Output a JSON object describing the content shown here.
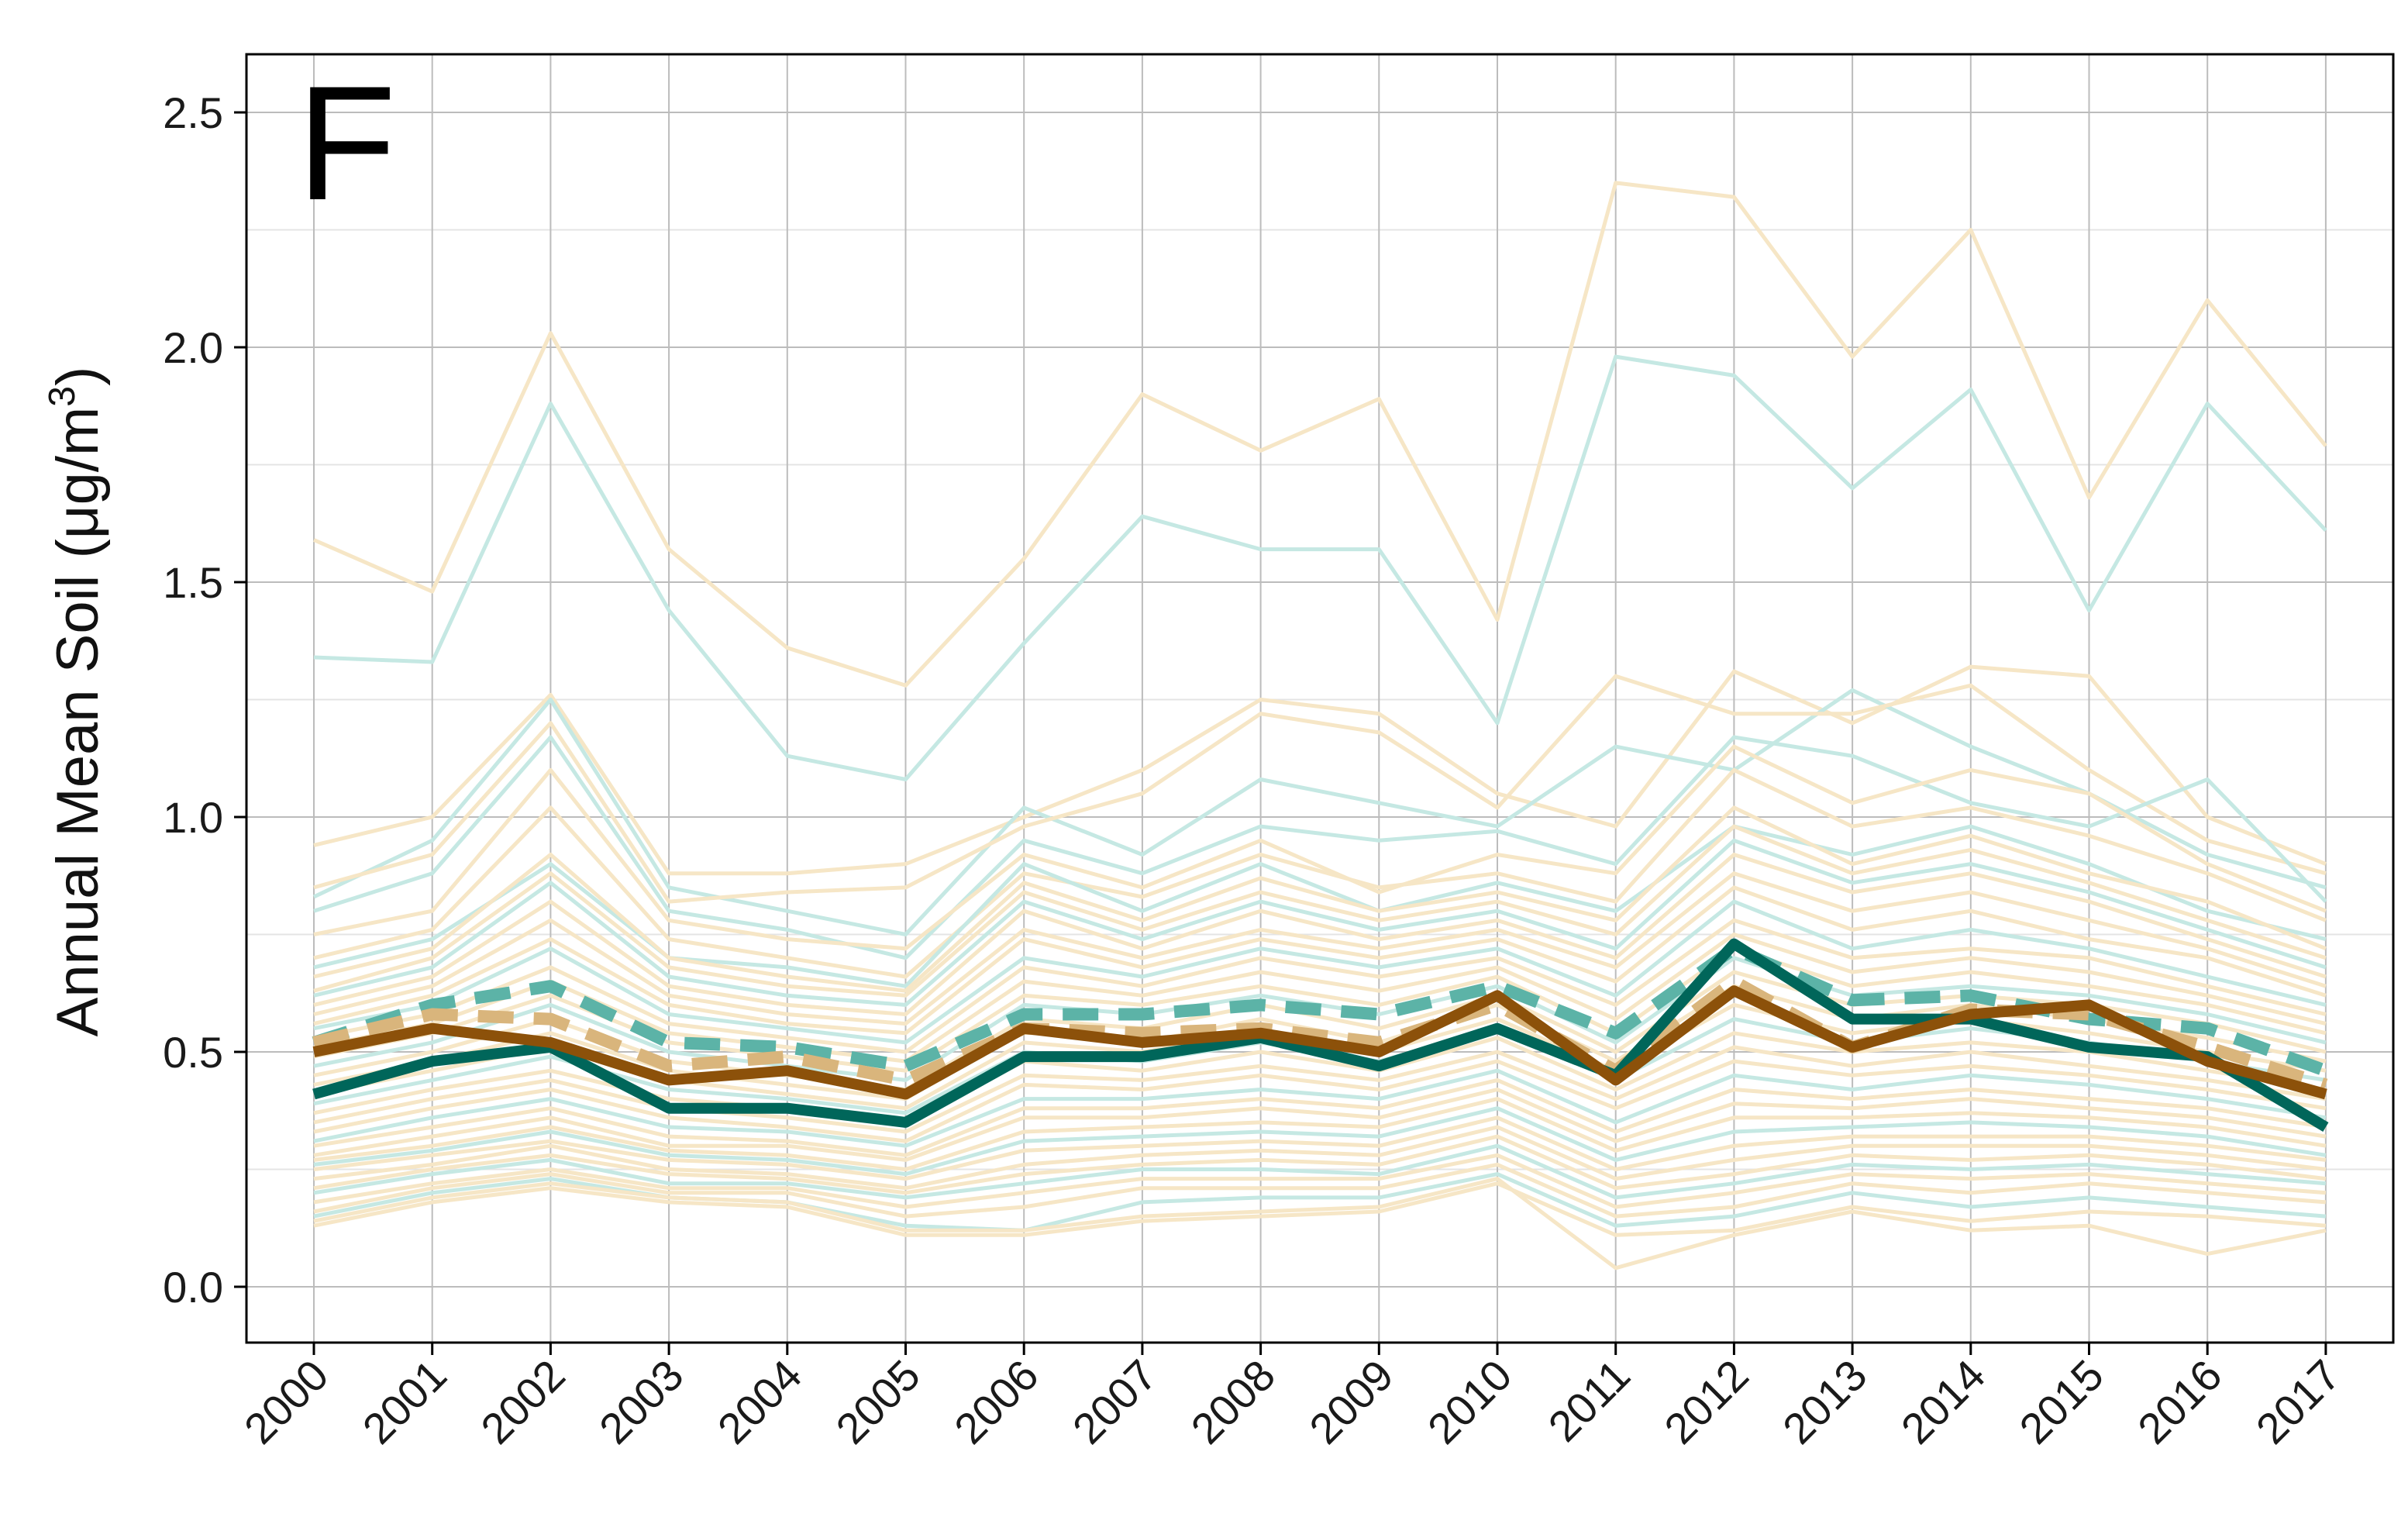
{
  "chart_data": {
    "type": "line",
    "panel_label": "F",
    "ylabel_main": "Annual Mean Soil (",
    "ylabel_mu": "μ",
    "ylabel_unit": "g/m",
    "ylabel_sup": "3",
    "ylabel_close": ")",
    "ylim": [
      -0.12,
      2.63
    ],
    "yticks": [
      "0.0",
      "0.5",
      "1.0",
      "1.5",
      "2.0",
      "2.5"
    ],
    "grid": true,
    "legend": "none",
    "x": [
      "2000",
      "2001",
      "2002",
      "2003",
      "2004",
      "2005",
      "2006",
      "2007",
      "2008",
      "2009",
      "2010",
      "2011",
      "2012",
      "2013",
      "2014",
      "2015",
      "2016",
      "2017"
    ],
    "colors": {
      "background_teal": "#c5e8e3",
      "background_tan": "#f6e6c6",
      "mean_teal_dashed": "#5cb3a7",
      "mean_tan_dashed": "#d9b57c",
      "highlight_teal": "#00665a",
      "highlight_brown": "#8c510a"
    },
    "background_series": [
      {
        "group": "tan",
        "values": [
          1.59,
          1.48,
          2.03,
          1.57,
          1.36,
          1.28,
          1.55,
          1.9,
          1.78,
          1.89,
          1.42,
          2.35,
          2.32,
          1.98,
          2.25,
          1.68,
          2.1,
          1.79
        ]
      },
      {
        "group": "teal",
        "values": [
          1.34,
          1.33,
          1.88,
          1.44,
          1.13,
          1.08,
          1.37,
          1.64,
          1.57,
          1.57,
          1.2,
          1.98,
          1.94,
          1.7,
          1.91,
          1.44,
          1.88,
          1.61
        ]
      },
      {
        "group": "tan",
        "values": [
          0.94,
          1.0,
          1.26,
          0.88,
          0.88,
          0.9,
          1.0,
          1.1,
          1.25,
          1.22,
          1.05,
          0.98,
          1.31,
          1.2,
          1.32,
          1.3,
          1.0,
          0.9
        ]
      },
      {
        "group": "teal",
        "values": [
          0.83,
          0.95,
          1.25,
          0.85,
          0.8,
          0.75,
          1.02,
          0.92,
          1.08,
          1.03,
          0.98,
          1.15,
          1.1,
          1.27,
          1.15,
          1.05,
          0.92,
          0.85
        ]
      },
      {
        "group": "tan",
        "values": [
          0.85,
          0.92,
          1.2,
          0.82,
          0.84,
          0.85,
          0.98,
          1.05,
          1.22,
          1.18,
          1.02,
          1.3,
          1.22,
          1.22,
          1.28,
          1.1,
          0.95,
          0.88
        ]
      },
      {
        "group": "teal",
        "values": [
          0.8,
          0.88,
          1.17,
          0.8,
          0.76,
          0.7,
          0.95,
          0.88,
          0.98,
          0.95,
          0.97,
          0.9,
          1.17,
          1.13,
          1.03,
          0.98,
          1.08,
          0.82
        ]
      },
      {
        "group": "tan",
        "values": [
          0.75,
          0.8,
          1.1,
          0.78,
          0.74,
          0.72,
          0.92,
          0.85,
          0.95,
          0.84,
          0.92,
          0.88,
          1.15,
          1.03,
          1.1,
          1.05,
          0.9,
          0.8
        ]
      },
      {
        "group": "tan",
        "values": [
          0.7,
          0.76,
          1.02,
          0.74,
          0.7,
          0.66,
          0.88,
          0.83,
          0.92,
          0.85,
          0.88,
          0.82,
          1.1,
          0.98,
          1.02,
          0.96,
          0.88,
          0.78
        ]
      },
      {
        "group": "teal",
        "values": [
          0.68,
          0.74,
          0.9,
          0.7,
          0.68,
          0.64,
          0.9,
          0.8,
          0.9,
          0.8,
          0.86,
          0.8,
          0.98,
          0.92,
          0.98,
          0.9,
          0.8,
          0.74
        ]
      },
      {
        "group": "tan",
        "values": [
          0.66,
          0.72,
          0.92,
          0.7,
          0.66,
          0.63,
          0.86,
          0.78,
          0.87,
          0.8,
          0.84,
          0.78,
          1.02,
          0.9,
          0.96,
          0.88,
          0.82,
          0.72
        ]
      },
      {
        "group": "tan",
        "values": [
          0.63,
          0.7,
          0.88,
          0.68,
          0.64,
          0.62,
          0.84,
          0.76,
          0.84,
          0.78,
          0.82,
          0.75,
          0.98,
          0.88,
          0.93,
          0.86,
          0.78,
          0.7
        ]
      },
      {
        "group": "teal",
        "values": [
          0.62,
          0.68,
          0.86,
          0.66,
          0.62,
          0.6,
          0.82,
          0.74,
          0.82,
          0.76,
          0.8,
          0.72,
          0.95,
          0.86,
          0.9,
          0.84,
          0.76,
          0.68
        ]
      },
      {
        "group": "tan",
        "values": [
          0.6,
          0.66,
          0.82,
          0.64,
          0.6,
          0.58,
          0.8,
          0.72,
          0.8,
          0.74,
          0.78,
          0.7,
          0.92,
          0.84,
          0.88,
          0.82,
          0.74,
          0.66
        ]
      },
      {
        "group": "tan",
        "values": [
          0.58,
          0.64,
          0.78,
          0.62,
          0.58,
          0.56,
          0.76,
          0.7,
          0.76,
          0.72,
          0.76,
          0.68,
          0.88,
          0.8,
          0.84,
          0.78,
          0.72,
          0.64
        ]
      },
      {
        "group": "tan",
        "values": [
          0.56,
          0.62,
          0.74,
          0.6,
          0.56,
          0.54,
          0.74,
          0.68,
          0.74,
          0.7,
          0.74,
          0.65,
          0.85,
          0.76,
          0.8,
          0.74,
          0.7,
          0.62
        ]
      },
      {
        "group": "teal",
        "values": [
          0.55,
          0.6,
          0.72,
          0.58,
          0.55,
          0.52,
          0.7,
          0.66,
          0.72,
          0.68,
          0.72,
          0.62,
          0.82,
          0.72,
          0.76,
          0.72,
          0.66,
          0.6
        ]
      },
      {
        "group": "tan",
        "values": [
          0.53,
          0.58,
          0.68,
          0.56,
          0.53,
          0.5,
          0.68,
          0.64,
          0.7,
          0.66,
          0.7,
          0.6,
          0.78,
          0.7,
          0.72,
          0.7,
          0.64,
          0.58
        ]
      },
      {
        "group": "tan",
        "values": [
          0.51,
          0.56,
          0.65,
          0.54,
          0.51,
          0.48,
          0.65,
          0.62,
          0.67,
          0.63,
          0.68,
          0.57,
          0.75,
          0.67,
          0.7,
          0.67,
          0.62,
          0.56
        ]
      },
      {
        "group": "tan",
        "values": [
          0.49,
          0.54,
          0.62,
          0.52,
          0.49,
          0.46,
          0.62,
          0.6,
          0.64,
          0.6,
          0.66,
          0.54,
          0.72,
          0.64,
          0.67,
          0.64,
          0.6,
          0.54
        ]
      },
      {
        "group": "teal",
        "values": [
          0.47,
          0.52,
          0.6,
          0.5,
          0.47,
          0.44,
          0.6,
          0.58,
          0.62,
          0.58,
          0.64,
          0.52,
          0.7,
          0.62,
          0.64,
          0.62,
          0.58,
          0.52
        ]
      },
      {
        "group": "tan",
        "values": [
          0.45,
          0.5,
          0.57,
          0.48,
          0.45,
          0.42,
          0.57,
          0.55,
          0.6,
          0.55,
          0.62,
          0.5,
          0.67,
          0.6,
          0.62,
          0.6,
          0.56,
          0.5
        ]
      },
      {
        "group": "tan",
        "values": [
          0.43,
          0.48,
          0.54,
          0.46,
          0.43,
          0.4,
          0.55,
          0.52,
          0.57,
          0.52,
          0.6,
          0.48,
          0.64,
          0.57,
          0.6,
          0.57,
          0.53,
          0.48
        ]
      },
      {
        "group": "tan",
        "values": [
          0.41,
          0.46,
          0.51,
          0.44,
          0.41,
          0.38,
          0.52,
          0.5,
          0.54,
          0.5,
          0.57,
          0.46,
          0.6,
          0.54,
          0.57,
          0.54,
          0.5,
          0.46
        ]
      },
      {
        "group": "teal",
        "values": [
          0.39,
          0.44,
          0.49,
          0.42,
          0.4,
          0.37,
          0.5,
          0.48,
          0.52,
          0.48,
          0.55,
          0.44,
          0.57,
          0.52,
          0.55,
          0.52,
          0.48,
          0.44
        ]
      },
      {
        "group": "tan",
        "values": [
          0.37,
          0.42,
          0.46,
          0.4,
          0.38,
          0.35,
          0.48,
          0.46,
          0.5,
          0.46,
          0.53,
          0.42,
          0.54,
          0.5,
          0.52,
          0.5,
          0.46,
          0.42
        ]
      },
      {
        "group": "tan",
        "values": [
          0.35,
          0.4,
          0.44,
          0.38,
          0.36,
          0.33,
          0.45,
          0.44,
          0.47,
          0.44,
          0.5,
          0.4,
          0.51,
          0.47,
          0.5,
          0.47,
          0.44,
          0.4
        ]
      },
      {
        "group": "tan",
        "values": [
          0.33,
          0.38,
          0.42,
          0.36,
          0.34,
          0.31,
          0.43,
          0.42,
          0.45,
          0.42,
          0.48,
          0.38,
          0.48,
          0.45,
          0.47,
          0.45,
          0.42,
          0.38
        ]
      },
      {
        "group": "teal",
        "values": [
          0.31,
          0.36,
          0.4,
          0.34,
          0.33,
          0.3,
          0.4,
          0.4,
          0.42,
          0.4,
          0.46,
          0.35,
          0.45,
          0.42,
          0.45,
          0.43,
          0.4,
          0.36
        ]
      },
      {
        "group": "tan",
        "values": [
          0.3,
          0.34,
          0.38,
          0.32,
          0.31,
          0.28,
          0.38,
          0.38,
          0.4,
          0.38,
          0.44,
          0.33,
          0.42,
          0.4,
          0.42,
          0.4,
          0.38,
          0.34
        ]
      },
      {
        "group": "tan",
        "values": [
          0.28,
          0.32,
          0.36,
          0.3,
          0.3,
          0.27,
          0.36,
          0.36,
          0.38,
          0.36,
          0.42,
          0.31,
          0.39,
          0.38,
          0.4,
          0.38,
          0.36,
          0.32
        ]
      },
      {
        "group": "tan",
        "values": [
          0.27,
          0.3,
          0.34,
          0.29,
          0.28,
          0.25,
          0.33,
          0.34,
          0.35,
          0.34,
          0.4,
          0.29,
          0.36,
          0.36,
          0.37,
          0.36,
          0.34,
          0.3
        ]
      },
      {
        "group": "teal",
        "values": [
          0.26,
          0.29,
          0.33,
          0.28,
          0.27,
          0.24,
          0.31,
          0.32,
          0.33,
          0.32,
          0.38,
          0.27,
          0.33,
          0.34,
          0.35,
          0.34,
          0.32,
          0.28
        ]
      },
      {
        "group": "tan",
        "values": [
          0.25,
          0.28,
          0.31,
          0.27,
          0.26,
          0.23,
          0.29,
          0.3,
          0.31,
          0.3,
          0.36,
          0.25,
          0.3,
          0.32,
          0.32,
          0.32,
          0.3,
          0.27
        ]
      },
      {
        "group": "tan",
        "values": [
          0.23,
          0.26,
          0.3,
          0.25,
          0.24,
          0.21,
          0.26,
          0.28,
          0.29,
          0.28,
          0.34,
          0.23,
          0.27,
          0.3,
          0.3,
          0.3,
          0.28,
          0.25
        ]
      },
      {
        "group": "tan",
        "values": [
          0.21,
          0.25,
          0.28,
          0.24,
          0.23,
          0.2,
          0.24,
          0.26,
          0.27,
          0.26,
          0.32,
          0.21,
          0.24,
          0.28,
          0.27,
          0.28,
          0.26,
          0.23
        ]
      },
      {
        "group": "teal",
        "values": [
          0.2,
          0.24,
          0.27,
          0.22,
          0.22,
          0.19,
          0.22,
          0.25,
          0.25,
          0.24,
          0.3,
          0.19,
          0.22,
          0.26,
          0.25,
          0.26,
          0.24,
          0.22
        ]
      },
      {
        "group": "tan",
        "values": [
          0.18,
          0.22,
          0.25,
          0.21,
          0.21,
          0.17,
          0.2,
          0.23,
          0.23,
          0.23,
          0.28,
          0.17,
          0.2,
          0.24,
          0.23,
          0.24,
          0.22,
          0.2
        ]
      },
      {
        "group": "tan",
        "values": [
          0.16,
          0.21,
          0.24,
          0.2,
          0.2,
          0.15,
          0.17,
          0.21,
          0.21,
          0.21,
          0.26,
          0.15,
          0.17,
          0.22,
          0.2,
          0.22,
          0.2,
          0.18
        ]
      },
      {
        "group": "teal",
        "values": [
          0.15,
          0.2,
          0.23,
          0.19,
          0.18,
          0.13,
          0.12,
          0.18,
          0.19,
          0.19,
          0.24,
          0.13,
          0.15,
          0.2,
          0.17,
          0.19,
          0.17,
          0.15
        ]
      },
      {
        "group": "tan",
        "values": [
          0.13,
          0.18,
          0.21,
          0.18,
          0.17,
          0.11,
          0.11,
          0.14,
          0.15,
          0.16,
          0.22,
          0.11,
          0.12,
          0.17,
          0.14,
          0.16,
          0.15,
          0.13
        ]
      },
      {
        "group": "tan",
        "values": [
          0.14,
          0.19,
          0.22,
          0.19,
          0.18,
          0.12,
          0.12,
          0.15,
          0.16,
          0.17,
          0.23,
          0.04,
          0.11,
          0.16,
          0.12,
          0.13,
          0.07,
          0.12
        ]
      }
    ],
    "mean_series": [
      {
        "group": "teal",
        "style": "dashed",
        "values": [
          0.52,
          0.6,
          0.64,
          0.52,
          0.51,
          0.47,
          0.58,
          0.58,
          0.6,
          0.58,
          0.64,
          0.54,
          0.72,
          0.61,
          0.62,
          0.57,
          0.55,
          0.46
        ]
      },
      {
        "group": "tan",
        "style": "dashed",
        "values": [
          0.52,
          0.58,
          0.57,
          0.47,
          0.49,
          0.44,
          0.55,
          0.54,
          0.55,
          0.52,
          0.6,
          0.46,
          0.65,
          0.51,
          0.59,
          0.58,
          0.51,
          0.43
        ]
      }
    ],
    "highlight_series": [
      {
        "group": "teal",
        "values": [
          0.41,
          0.48,
          0.51,
          0.38,
          0.38,
          0.35,
          0.49,
          0.49,
          0.53,
          0.47,
          0.55,
          0.45,
          0.73,
          0.57,
          0.57,
          0.51,
          0.49,
          0.34
        ]
      },
      {
        "group": "brown",
        "values": [
          0.5,
          0.55,
          0.52,
          0.44,
          0.46,
          0.41,
          0.55,
          0.52,
          0.54,
          0.5,
          0.62,
          0.44,
          0.63,
          0.51,
          0.58,
          0.6,
          0.48,
          0.41
        ]
      }
    ]
  }
}
